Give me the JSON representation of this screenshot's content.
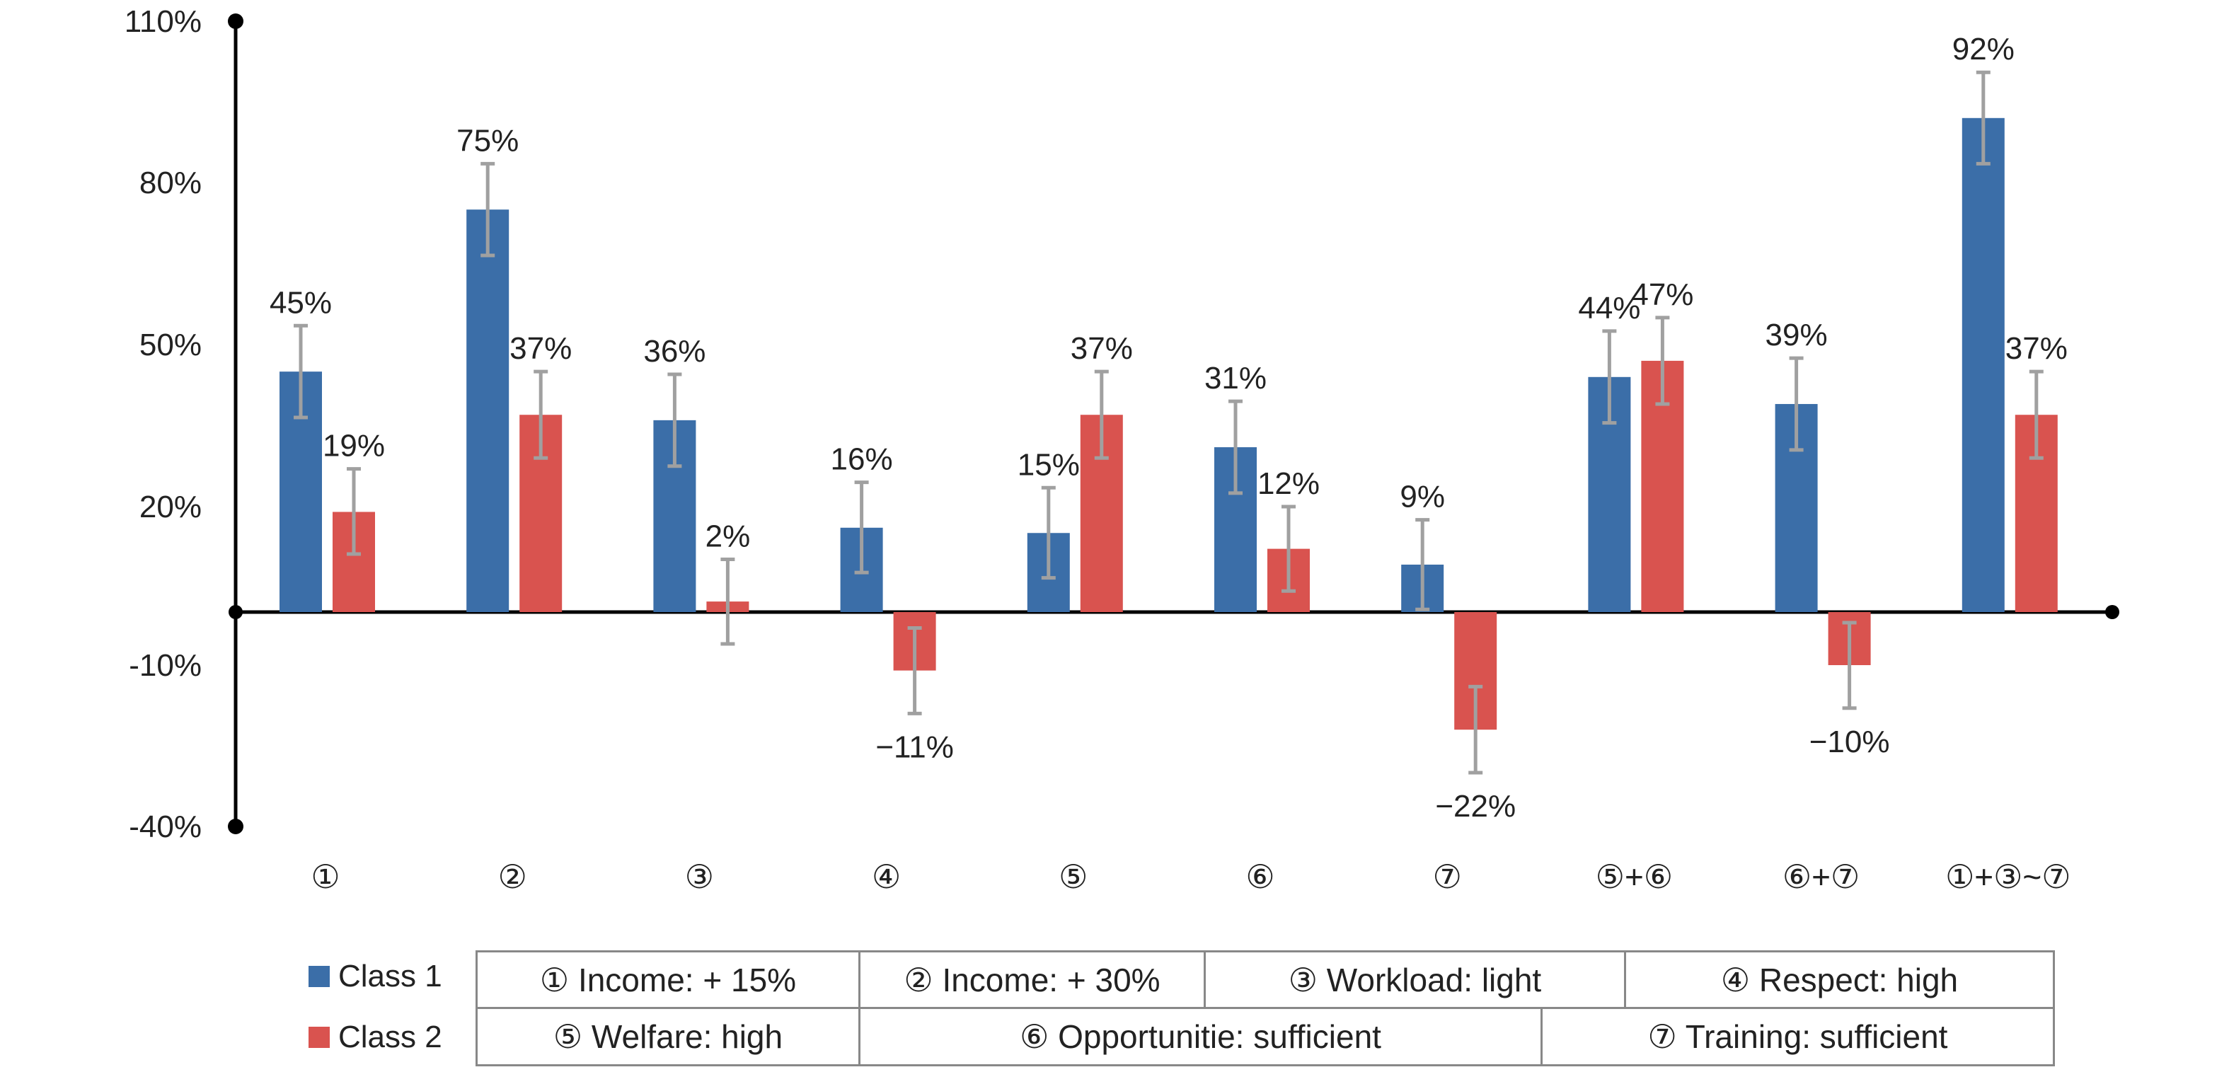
{
  "chart_data": {
    "type": "bar",
    "categories": [
      "①",
      "②",
      "③",
      "④",
      "⑤",
      "⑥",
      "⑦",
      "⑤+⑥",
      "⑥+⑦",
      "①+③~⑦"
    ],
    "series": [
      {
        "name": "Class 1",
        "color": "#3b6ea8",
        "values": [
          45,
          75,
          36,
          16,
          15,
          31,
          9,
          44,
          39,
          92
        ],
        "labels": [
          "45%",
          "75%",
          "36%",
          "16%",
          "15%",
          "31%",
          "9%",
          "44%",
          "39%",
          "92%"
        ],
        "error": [
          8.5,
          8.5,
          8.5,
          8.5,
          8.5,
          8.5,
          8.5,
          8.5,
          8.5,
          8.5
        ]
      },
      {
        "name": "Class 2",
        "color": "#d9534f",
        "values": [
          19,
          37,
          2,
          -11,
          37,
          12,
          -22,
          47,
          -10,
          37
        ],
        "labels": [
          "19%",
          "37%",
          "2%",
          "−11%",
          "37%",
          "12%",
          "−22%",
          "47%",
          "−10%",
          "37%"
        ],
        "error": [
          8,
          8,
          8,
          8,
          8,
          8,
          8,
          8,
          8,
          8
        ]
      }
    ],
    "yticks": [
      {
        "value": 110,
        "label": "110%"
      },
      {
        "value": 80,
        "label": "80%"
      },
      {
        "value": 50,
        "label": "50%"
      },
      {
        "value": 20,
        "label": "20%"
      },
      {
        "value": -10,
        "label": "-10%"
      },
      {
        "value": -40,
        "label": "-40%"
      }
    ],
    "ylim": [
      -40,
      110
    ],
    "title": "",
    "xlabel": "",
    "ylabel": "",
    "grid": false,
    "legend_position": "bottom-left"
  },
  "legend": {
    "class1": "Class 1",
    "class2": "Class 2"
  },
  "key_table": {
    "row1": [
      "① Income: + 15%",
      "② Income: + 30%",
      "③ Workload: light",
      "④ Respect: high"
    ],
    "row2": [
      "⑤ Welfare: high",
      "⑥ Opportunitie: sufficient",
      "⑦ Training: sufficient"
    ]
  }
}
